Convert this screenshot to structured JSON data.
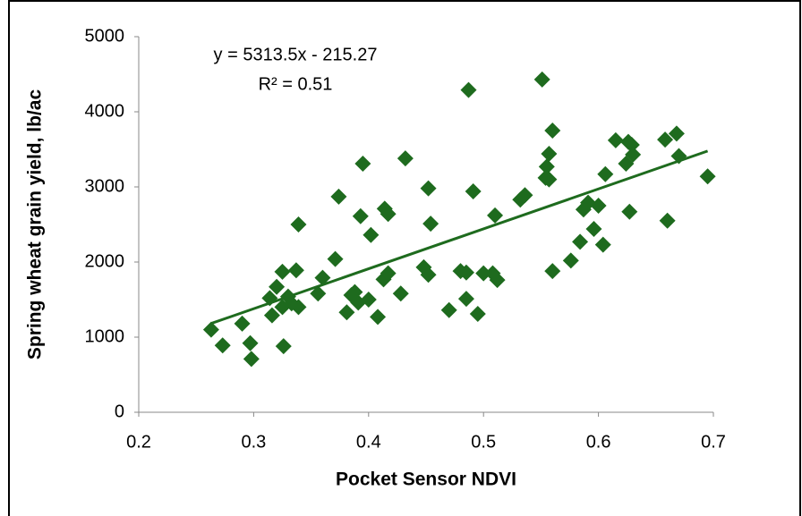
{
  "chart_data": {
    "type": "scatter",
    "xlabel": "Pocket Sensor NDVI",
    "ylabel": "Spring wheat grain yield, lb/ac",
    "trendline": {
      "equation": "y = 5313.5x - 215.27",
      "r_squared": "R² = 0.51",
      "slope": 5313.5,
      "intercept": -215.27
    },
    "xlim": [
      0.2,
      0.7
    ],
    "xticks": [
      0.2,
      0.3,
      0.4,
      0.5,
      0.6,
      0.7
    ],
    "ylim": [
      0,
      5000
    ],
    "yticks": [
      0,
      1000,
      2000,
      3000,
      4000,
      5000
    ],
    "color": "#1e6b1e",
    "grid": false,
    "x": [
      0.263,
      0.273,
      0.29,
      0.297,
      0.298,
      0.314,
      0.316,
      0.32,
      0.325,
      0.326,
      0.325,
      0.33,
      0.333,
      0.337,
      0.339,
      0.339,
      0.356,
      0.36,
      0.371,
      0.374,
      0.381,
      0.385,
      0.388,
      0.391,
      0.393,
      0.395,
      0.4,
      0.402,
      0.408,
      0.413,
      0.414,
      0.417,
      0.417,
      0.428,
      0.432,
      0.448,
      0.452,
      0.452,
      0.454,
      0.47,
      0.48,
      0.485,
      0.485,
      0.487,
      0.491,
      0.495,
      0.5,
      0.508,
      0.51,
      0.512,
      0.532,
      0.536,
      0.551,
      0.554,
      0.555,
      0.557,
      0.557,
      0.56,
      0.56,
      0.576,
      0.584,
      0.587,
      0.591,
      0.596,
      0.6,
      0.604,
      0.606,
      0.615,
      0.624,
      0.626,
      0.627,
      0.629,
      0.63,
      0.658,
      0.66,
      0.668,
      0.67,
      0.695
    ],
    "values": [
      1100,
      890,
      1180,
      920,
      710,
      1520,
      1290,
      1670,
      1870,
      880,
      1400,
      1540,
      1450,
      1890,
      2500,
      1400,
      1580,
      1790,
      2040,
      2870,
      1330,
      1560,
      1600,
      1460,
      2610,
      3310,
      1500,
      2360,
      1270,
      1770,
      2710,
      1850,
      2640,
      1580,
      3380,
      1930,
      1830,
      2980,
      2510,
      1360,
      1880,
      1510,
      1860,
      4290,
      2940,
      1310,
      1850,
      1850,
      2620,
      1760,
      2830,
      2890,
      4430,
      3120,
      3270,
      3100,
      3440,
      3750,
      1880,
      2020,
      2270,
      2700,
      2790,
      2440,
      2750,
      2230,
      3170,
      3620,
      3310,
      3600,
      2670,
      3560,
      3430,
      3630,
      2550,
      3710,
      3410,
      3140
    ]
  }
}
